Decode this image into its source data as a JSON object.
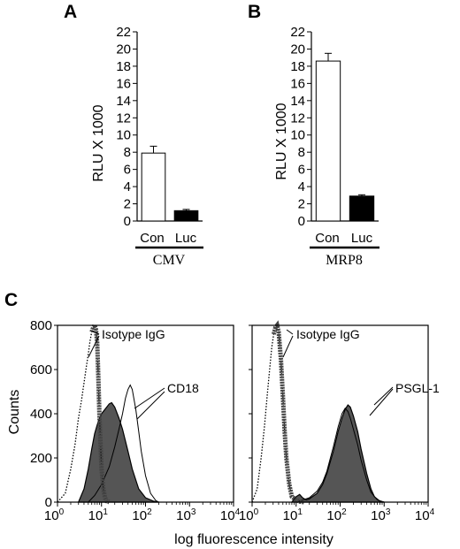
{
  "chart_data": [
    {
      "panel": "A",
      "type": "bar",
      "categories": [
        "Con",
        "Luc"
      ],
      "values": [
        7.9,
        1.2
      ],
      "errors": [
        0.8,
        0.15
      ],
      "bar_colors": [
        "#ffffff",
        "#000000"
      ],
      "ylabel": "RLU X 1000",
      "ylim": [
        0,
        22
      ],
      "yticks": [
        "0",
        "2",
        "4",
        "6",
        "8",
        "10",
        "12",
        "14",
        "16",
        "18",
        "20",
        "22"
      ],
      "group_label": "CMV"
    },
    {
      "panel": "B",
      "type": "bar",
      "categories": [
        "Con",
        "Luc"
      ],
      "values": [
        18.6,
        2.9
      ],
      "errors": [
        0.9,
        0.15
      ],
      "bar_colors": [
        "#ffffff",
        "#000000"
      ],
      "ylabel": "RLU X 1000",
      "ylim": [
        0,
        22
      ],
      "yticks": [
        "0",
        "2",
        "4",
        "6",
        "8",
        "10",
        "12",
        "14",
        "16",
        "18",
        "20",
        "22"
      ],
      "group_label": "MRP8"
    },
    {
      "panel": "C",
      "type": "area",
      "subtype": "flow-cytometry-histogram",
      "xscale": "log",
      "xlim": [
        1,
        10000
      ],
      "ylim": [
        0,
        800
      ],
      "yticks": [
        "0",
        "200",
        "400",
        "600",
        "800"
      ],
      "xtick_exponents": [
        "0",
        "1",
        "2",
        "3",
        "4"
      ],
      "ylabel": "Counts",
      "xlabel": "log fluorescence intensity",
      "fill_color": "#555555",
      "histograms": [
        {
          "isotype": {
            "label": "Isotype IgG",
            "x": [
              1,
              1.5,
              2,
              2.5,
              3,
              3.5,
              4,
              4.5,
              5,
              5.5,
              6,
              6.5,
              7,
              7.5,
              8,
              8.5,
              9,
              10,
              11,
              12,
              13,
              15
            ],
            "y": [
              0,
              40,
              150,
              260,
              380,
              460,
              540,
              610,
              670,
              730,
              770,
              790,
              800,
              780,
              720,
              560,
              380,
              150,
              60,
              20,
              5,
              0
            ]
          },
          "stained": {
            "label": "CD18",
            "x": [
              3,
              4,
              5,
              6,
              7,
              8,
              9,
              10,
              12,
              15,
              17,
              20,
              25,
              30,
              40,
              50,
              70,
              100,
              150,
              200
            ],
            "y": [
              0,
              60,
              150,
              240,
              310,
              350,
              380,
              400,
              420,
              445,
              450,
              430,
              380,
              330,
              230,
              150,
              60,
              20,
              5,
              0
            ]
          },
          "open": {
            "label": "CD18",
            "x": [
              5,
              7,
              10,
              15,
              20,
              25,
              30,
              35,
              40,
              45,
              50,
              60,
              70,
              80,
              100,
              130,
              170,
              200
            ],
            "y": [
              0,
              30,
              80,
              160,
              250,
              330,
              400,
              470,
              510,
              530,
              510,
              420,
              320,
              230,
              120,
              40,
              8,
              0
            ]
          }
        },
        {
          "isotype": {
            "label": "Isotype IgG",
            "x": [
              1,
              1.3,
              1.6,
              1.9,
              2.2,
              2.5,
              2.8,
              3.1,
              3.4,
              3.7,
              4,
              4.5,
              5,
              5.5,
              6,
              7,
              8,
              10,
              12,
              15
            ],
            "y": [
              0,
              60,
              200,
              340,
              480,
              600,
              700,
              760,
              790,
              800,
              770,
              650,
              480,
              320,
              200,
              80,
              25,
              10,
              3,
              0
            ]
          },
          "stained": {
            "label": "PSGL-1",
            "x": [
              8,
              10,
              12,
              14,
              17,
              20,
              30,
              40,
              50,
              70,
              90,
              110,
              130,
              150,
              170,
              200,
              250,
              300,
              400,
              500,
              600,
              800,
              1000
            ],
            "y": [
              0,
              25,
              35,
              20,
              10,
              15,
              40,
              80,
              130,
              230,
              320,
              380,
              420,
              440,
              430,
              390,
              320,
              240,
              130,
              60,
              25,
              5,
              0
            ]
          },
          "open": {
            "label": "PSGL-1",
            "x": [
              10,
              20,
              30,
              40,
              50,
              70,
              90,
              110,
              130,
              150,
              170,
              200,
              250,
              300,
              400,
              500,
              700,
              1000
            ],
            "y": [
              0,
              20,
              50,
              90,
              140,
              250,
              340,
              400,
              425,
              410,
              380,
              330,
              260,
              190,
              100,
              45,
              10,
              0
            ]
          }
        }
      ]
    }
  ]
}
